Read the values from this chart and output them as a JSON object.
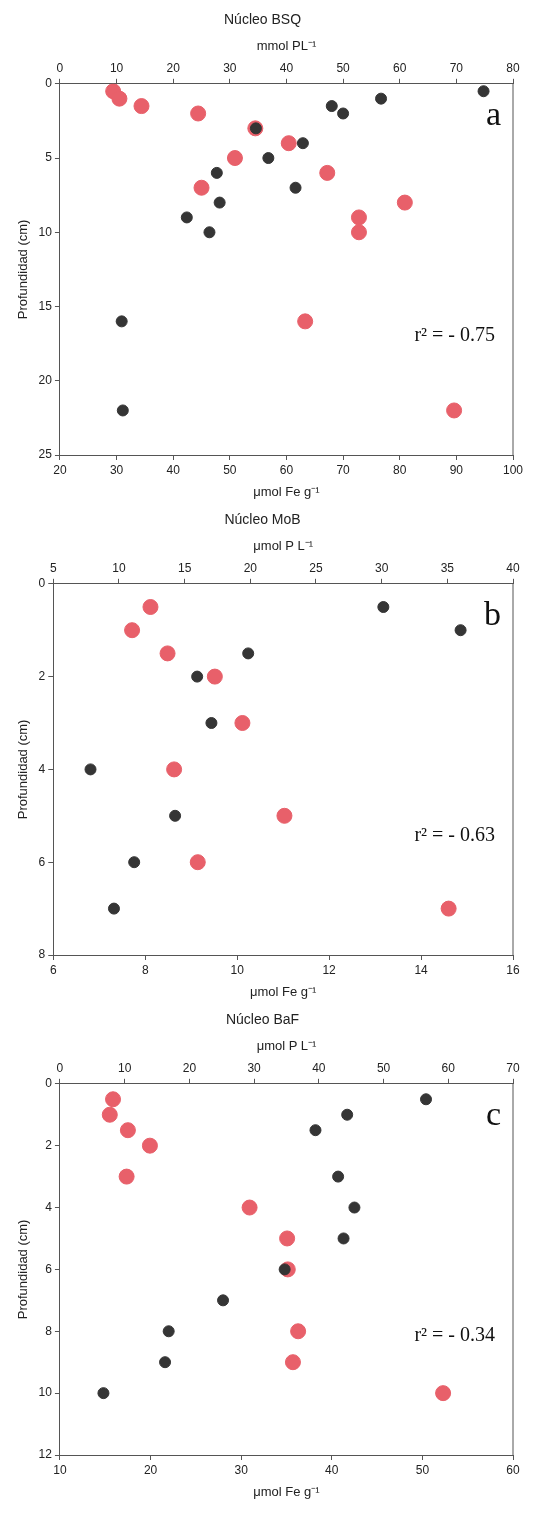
{
  "chart_data": [
    {
      "type": "scatter",
      "title": "Núcleo BSQ",
      "x2label": "mmol PL⁻¹",
      "xlabel": "μmol Fe g⁻¹",
      "ylabel": "Profundidad (cm)",
      "xlim": [
        20,
        100
      ],
      "xticks": [
        20,
        30,
        40,
        50,
        60,
        70,
        80,
        90,
        100
      ],
      "x2lim": [
        0,
        80
      ],
      "x2ticks": [
        0,
        10,
        20,
        30,
        40,
        50,
        60,
        70,
        80
      ],
      "ylim": [
        25,
        0
      ],
      "yticks": [
        0,
        5,
        10,
        15,
        20,
        25
      ],
      "marker": "circle",
      "grid": false,
      "annotations": [
        "a",
        "r² = - 0.75"
      ],
      "series": [
        {
          "color": "#353535",
          "x": [
            94.8,
            76.7,
            68,
            70,
            54.6,
            62.9,
            56.8,
            47.7,
            61.6,
            48.2,
            42.4,
            46.4,
            30.9,
            31.1
          ],
          "values": [
            0.5,
            1,
            1.5,
            2,
            3,
            4,
            5,
            6,
            7,
            8,
            9,
            10,
            16,
            22
          ]
        },
        {
          "color": "#e8606a",
          "axis": "x2",
          "x": [
            9.4,
            10.5,
            14.4,
            24.4,
            34.5,
            40.4,
            30.9,
            47.2,
            25,
            60.9,
            52.8,
            52.8,
            43.3,
            69.6
          ],
          "values": [
            0.5,
            1,
            1.5,
            2,
            3,
            4,
            5,
            6,
            7,
            8,
            9,
            10,
            16,
            22
          ]
        }
      ]
    },
    {
      "type": "scatter",
      "title": "Núcleo MoB",
      "x2label": "μmol P L⁻¹",
      "xlabel": "μmol Fe g⁻¹",
      "ylabel": "Profundidad (cm)",
      "xlim": [
        6,
        16
      ],
      "xticks": [
        6,
        8,
        10,
        12,
        14,
        16
      ],
      "x2lim": [
        5,
        40
      ],
      "x2ticks": [
        5,
        10,
        15,
        20,
        25,
        30,
        35,
        40
      ],
      "ylim": [
        8,
        0
      ],
      "yticks": [
        0,
        2,
        4,
        6,
        8
      ],
      "marker": "circle",
      "grid": false,
      "annotations": [
        "b",
        "r² = - 0.63"
      ],
      "series": [
        {
          "color": "#353535",
          "x": [
            13.18,
            14.86,
            10.24,
            9.13,
            9.44,
            6.81,
            8.65,
            7.76,
            7.32
          ],
          "values": [
            0.5,
            1,
            1.5,
            2,
            3,
            4,
            5,
            6,
            7
          ]
        },
        {
          "color": "#e8606a",
          "axis": "x2",
          "x": [
            12.4,
            11,
            13.7,
            17.3,
            19.4,
            14.2,
            22.6,
            16,
            35.1
          ],
          "values": [
            0.5,
            1,
            1.5,
            2,
            3,
            4,
            5,
            6,
            7
          ]
        }
      ]
    },
    {
      "type": "scatter",
      "title": "Núcleo BaF",
      "x2label": "μmol P L⁻¹",
      "xlabel": "μmol Fe g⁻¹",
      "ylabel": "Profundidad (cm)",
      "xlim": [
        10,
        60
      ],
      "xticks": [
        10,
        20,
        30,
        40,
        50,
        60
      ],
      "x2lim": [
        0,
        70
      ],
      "x2ticks": [
        0,
        10,
        20,
        30,
        40,
        50,
        60,
        70
      ],
      "ylim": [
        12,
        0
      ],
      "yticks": [
        0,
        2,
        4,
        6,
        8,
        10,
        12
      ],
      "marker": "circle",
      "grid": false,
      "annotations": [
        "c",
        "r² = - 0.34"
      ],
      "series": [
        {
          "color": "#353535",
          "x": [
            50.4,
            41.7,
            38.2,
            40.7,
            42.5,
            41.3,
            34.8,
            28,
            22,
            21.6,
            14.8
          ],
          "values": [
            0.5,
            1,
            1.5,
            3,
            4,
            5,
            6,
            7,
            8,
            9,
            10
          ]
        },
        {
          "color": "#e8606a",
          "axis": "x2",
          "x": [
            8.2,
            7.7,
            10.5,
            13.9,
            10.3,
            29.3,
            35.1,
            35.2,
            36.8,
            36,
            59.2
          ],
          "values": [
            0.5,
            1,
            1.5,
            2,
            3,
            4,
            5,
            6,
            8,
            9,
            10
          ]
        }
      ]
    }
  ]
}
